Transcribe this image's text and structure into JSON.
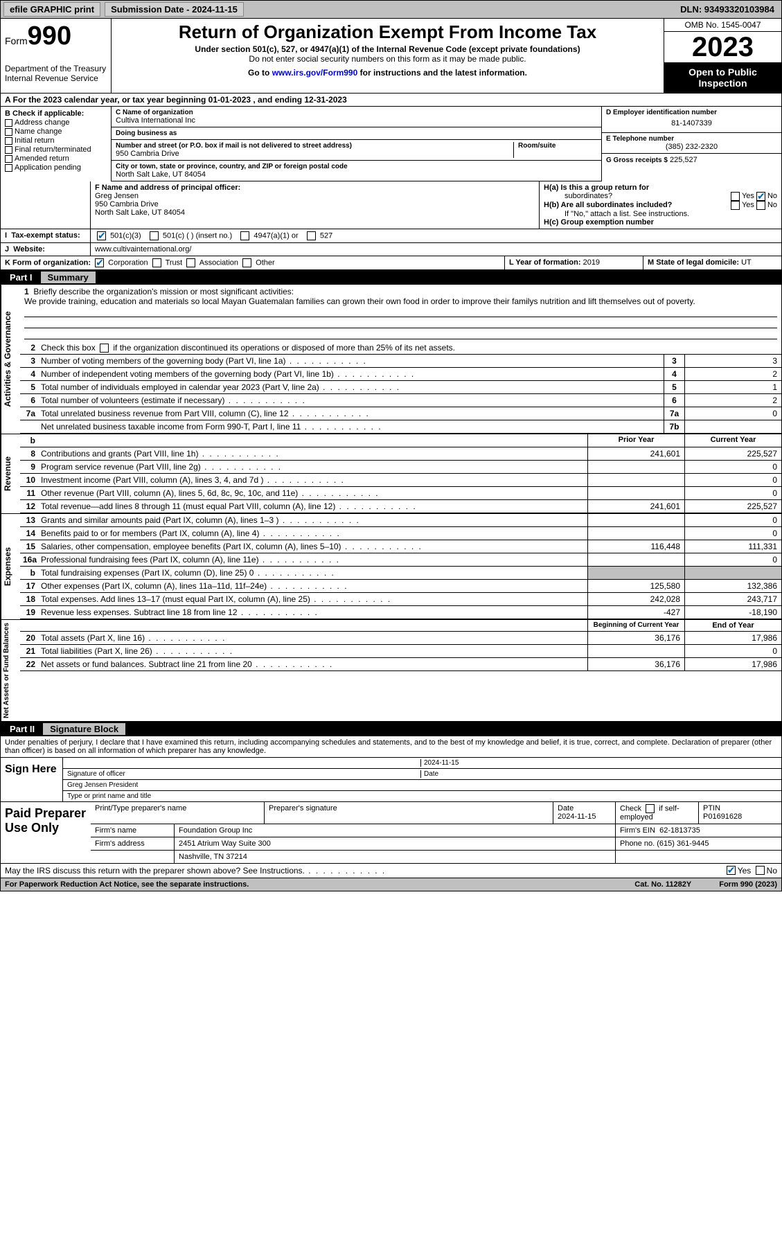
{
  "topbar": {
    "efile_label": "efile GRAPHIC print",
    "submission": "Submission Date - 2024-11-15",
    "dln": "DLN: 93493320103984"
  },
  "header": {
    "form_label": "Form",
    "form_number": "990",
    "title": "Return of Organization Exempt From Income Tax",
    "subtitle": "Under section 501(c), 527, or 4947(a)(1) of the Internal Revenue Code (except private foundations)",
    "no_ssn": "Do not enter social security numbers on this form as it may be made public.",
    "goto": "Go to www.irs.gov/Form990 for instructions and the latest information.",
    "goto_url": "www.irs.gov/Form990",
    "dept": "Department of the Treasury",
    "irs": "Internal Revenue Service",
    "omb": "OMB No. 1545-0047",
    "year": "2023",
    "inspection": "Open to Public Inspection"
  },
  "section_a": {
    "label": "A For the 2023 calendar year, or tax year beginning 01-01-2023   , and ending 12-31-2023"
  },
  "section_b": {
    "label": "B Check if applicable:",
    "items": [
      "Address change",
      "Name change",
      "Initial return",
      "Final return/terminated",
      "Amended return",
      "Application pending"
    ]
  },
  "section_c": {
    "name_label": "C Name of organization",
    "name": "Cultiva International Inc",
    "dba_label": "Doing business as",
    "street_label": "Number and street (or P.O. box if mail is not delivered to street address)",
    "street": "950 Cambria Drive",
    "room_label": "Room/suite",
    "city_label": "City or town, state or province, country, and ZIP or foreign postal code",
    "city": "North Salt Lake, UT  84054"
  },
  "section_d": {
    "ein_label": "D Employer identification number",
    "ein": "81-1407339",
    "phone_label": "E Telephone number",
    "phone": "(385) 232-2320",
    "gross_label": "G Gross receipts $",
    "gross": "225,527"
  },
  "section_f": {
    "label": "F  Name and address of principal officer:",
    "name": "Greg Jensen",
    "street": "950 Cambria Drive",
    "city": "North Salt Lake, UT  84054"
  },
  "section_h": {
    "ha_label": "H(a)  Is this a group return for",
    "ha_sub": "subordinates?",
    "hb_label": "H(b)  Are all subordinates included?",
    "hb_note": "If \"No,\" attach a list. See instructions.",
    "hc_label": "H(c)  Group exemption number",
    "yes": "Yes",
    "no": "No"
  },
  "section_i": {
    "label": "Tax-exempt status:",
    "opts": [
      "501(c)(3)",
      "501(c) (  ) (insert no.)",
      "4947(a)(1) or",
      "527"
    ]
  },
  "section_j": {
    "label": "Website:",
    "value": "www.cultivainternational.org/"
  },
  "section_k": {
    "label": "K Form of organization:",
    "opts": [
      "Corporation",
      "Trust",
      "Association",
      "Other"
    ]
  },
  "section_l": {
    "label": "L Year of formation:",
    "value": "2019"
  },
  "section_m": {
    "label": "M State of legal domicile:",
    "value": "UT"
  },
  "part1": {
    "title_num": "Part I",
    "title": "Summary",
    "line1_label": "Briefly describe the organization's mission or most significant activities:",
    "mission": "We provide training, education and materials so local Mayan Guatemalan families can grown their own food in order to improve their familys nutrition and lift themselves out of poverty.",
    "line2": "Check this box       if the organization discontinued its operations or disposed of more than 25% of its net assets.",
    "governance_label": "Activities & Governance",
    "revenue_label": "Revenue",
    "expenses_label": "Expenses",
    "netassets_label": "Net Assets or Fund Balances",
    "lines_gov": [
      {
        "n": "3",
        "t": "Number of voting members of the governing body (Part VI, line 1a)",
        "box": "3",
        "v": "3"
      },
      {
        "n": "4",
        "t": "Number of independent voting members of the governing body (Part VI, line 1b)",
        "box": "4",
        "v": "2"
      },
      {
        "n": "5",
        "t": "Total number of individuals employed in calendar year 2023 (Part V, line 2a)",
        "box": "5",
        "v": "1"
      },
      {
        "n": "6",
        "t": "Total number of volunteers (estimate if necessary)",
        "box": "6",
        "v": "2"
      },
      {
        "n": "7a",
        "t": "Total unrelated business revenue from Part VIII, column (C), line 12",
        "box": "7a",
        "v": "0"
      },
      {
        "n": "",
        "t": "Net unrelated business taxable income from Form 990-T, Part I, line 11",
        "box": "7b",
        "v": ""
      }
    ],
    "prior_year": "Prior Year",
    "current_year": "Current Year",
    "lines_rev": [
      {
        "n": "8",
        "t": "Contributions and grants (Part VIII, line 1h)",
        "py": "241,601",
        "cy": "225,527"
      },
      {
        "n": "9",
        "t": "Program service revenue (Part VIII, line 2g)",
        "py": "",
        "cy": "0"
      },
      {
        "n": "10",
        "t": "Investment income (Part VIII, column (A), lines 3, 4, and 7d )",
        "py": "",
        "cy": "0"
      },
      {
        "n": "11",
        "t": "Other revenue (Part VIII, column (A), lines 5, 6d, 8c, 9c, 10c, and 11e)",
        "py": "",
        "cy": "0"
      },
      {
        "n": "12",
        "t": "Total revenue—add lines 8 through 11 (must equal Part VIII, column (A), line 12)",
        "py": "241,601",
        "cy": "225,527"
      }
    ],
    "lines_exp": [
      {
        "n": "13",
        "t": "Grants and similar amounts paid (Part IX, column (A), lines 1–3 )",
        "py": "",
        "cy": "0"
      },
      {
        "n": "14",
        "t": "Benefits paid to or for members (Part IX, column (A), line 4)",
        "py": "",
        "cy": "0"
      },
      {
        "n": "15",
        "t": "Salaries, other compensation, employee benefits (Part IX, column (A), lines 5–10)",
        "py": "116,448",
        "cy": "111,331"
      },
      {
        "n": "16a",
        "t": "Professional fundraising fees (Part IX, column (A), line 11e)",
        "py": "",
        "cy": "0"
      },
      {
        "n": "b",
        "t": "Total fundraising expenses (Part IX, column (D), line 25) 0",
        "py": "shade",
        "cy": "shade"
      },
      {
        "n": "17",
        "t": "Other expenses (Part IX, column (A), lines 11a–11d, 11f–24e)",
        "py": "125,580",
        "cy": "132,386"
      },
      {
        "n": "18",
        "t": "Total expenses. Add lines 13–17 (must equal Part IX, column (A), line 25)",
        "py": "242,028",
        "cy": "243,717"
      },
      {
        "n": "19",
        "t": "Revenue less expenses. Subtract line 18 from line 12",
        "py": "-427",
        "cy": "-18,190"
      }
    ],
    "boy": "Beginning of Current Year",
    "eoy": "End of Year",
    "lines_net": [
      {
        "n": "20",
        "t": "Total assets (Part X, line 16)",
        "py": "36,176",
        "cy": "17,986"
      },
      {
        "n": "21",
        "t": "Total liabilities (Part X, line 26)",
        "py": "",
        "cy": "0"
      },
      {
        "n": "22",
        "t": "Net assets or fund balances. Subtract line 21 from line 20",
        "py": "36,176",
        "cy": "17,986"
      }
    ]
  },
  "part2": {
    "title_num": "Part II",
    "title": "Signature Block",
    "declaration": "Under penalties of perjury, I declare that I have examined this return, including accompanying schedules and statements, and to the best of my knowledge and belief, it is true, correct, and complete. Declaration of preparer (other than officer) is based on all information of which preparer has any knowledge.",
    "sign_here": "Sign Here",
    "sig_officer": "Signature of officer",
    "officer_name": "Greg Jensen President",
    "type_name": "Type or print name and title",
    "date_label": "Date",
    "date": "2024-11-15",
    "paid_label": "Paid Preparer Use Only",
    "prep_name_label": "Print/Type preparer's name",
    "prep_sig_label": "Preparer's signature",
    "prep_date": "2024-11-15",
    "check_self": "Check        if self-employed",
    "ptin_label": "PTIN",
    "ptin": "P01691628",
    "firm_name_label": "Firm's name",
    "firm_name": "Foundation Group Inc",
    "firm_ein_label": "Firm's EIN",
    "firm_ein": "62-1813735",
    "firm_addr_label": "Firm's address",
    "firm_addr": "2451 Atrium Way Suite 300",
    "firm_city": "Nashville, TN  37214",
    "firm_phone_label": "Phone no.",
    "firm_phone": "(615) 361-9445",
    "discuss": "May the IRS discuss this return with the preparer shown above? See Instructions.",
    "yes": "Yes",
    "no": "No"
  },
  "footer": {
    "paperwork": "For Paperwork Reduction Act Notice, see the separate instructions.",
    "cat": "Cat. No. 11282Y",
    "form": "Form 990 (2023)"
  }
}
